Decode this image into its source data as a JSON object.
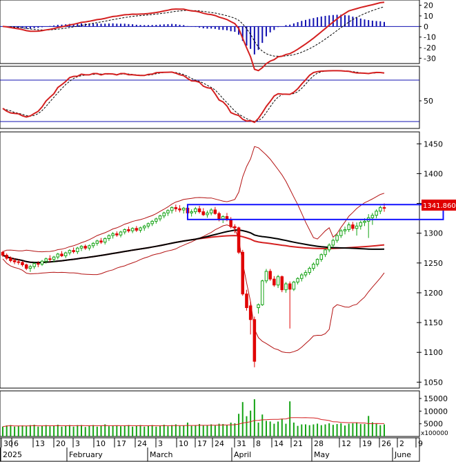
{
  "chart_data": {
    "type": "candlestick",
    "price_label": "1341.860",
    "colors": {
      "background": "#ffffff",
      "up": "#13a313",
      "down": "#e00000",
      "ma_short": "#000000",
      "ma_long": "#d42020",
      "bands": "#b31010",
      "highlight_box": "#1010ff",
      "macd_hist": "#1010b0",
      "price_tag": "#e00000"
    },
    "x_axis": {
      "day_ticks": [
        "30",
        "6",
        "13",
        "20",
        "3",
        "10",
        "17",
        "24",
        "3",
        "10",
        "17",
        "24",
        "31",
        "8",
        "14",
        "21",
        "28",
        "12",
        "19",
        "26",
        "2",
        "9"
      ],
      "month_labels": [
        "2025",
        "February",
        "March",
        "April",
        "May",
        "June"
      ]
    },
    "macd_panel": {
      "ticks": [
        "20",
        "10",
        "0",
        "-10",
        "-20",
        "-30"
      ],
      "ylim": [
        -35,
        25
      ]
    },
    "stoch_panel": {
      "ticks": [
        "50"
      ],
      "lines": [
        80,
        20
      ],
      "ylim": [
        10,
        100
      ]
    },
    "price_panel": {
      "ticks": [
        "1450",
        "1400",
        "1350",
        "1300",
        "1250",
        "1200",
        "1150",
        "1100",
        "1050"
      ],
      "ylim": [
        1040,
        1470
      ]
    },
    "volume_panel": {
      "ticks": [
        "15000",
        "10000",
        "5000"
      ],
      "unit": "x100000",
      "ylim": [
        0,
        18000
      ]
    },
    "resistance_zone": {
      "low": 1323,
      "high": 1348,
      "start_index": 47,
      "end_index": 112
    },
    "candles": [
      [
        1268,
        1270,
        1260,
        1263
      ],
      [
        1263,
        1266,
        1255,
        1258
      ],
      [
        1258,
        1261,
        1251,
        1254
      ],
      [
        1254,
        1258,
        1248,
        1252
      ],
      [
        1252,
        1256,
        1247,
        1251
      ],
      [
        1251,
        1253,
        1244,
        1247
      ],
      [
        1247,
        1249,
        1238,
        1241
      ],
      [
        1241,
        1247,
        1235,
        1244
      ],
      [
        1244,
        1251,
        1240,
        1249
      ],
      [
        1249,
        1253,
        1243,
        1248
      ],
      [
        1248,
        1255,
        1245,
        1253
      ],
      [
        1253,
        1259,
        1249,
        1257
      ],
      [
        1257,
        1263,
        1252,
        1256
      ],
      [
        1256,
        1262,
        1251,
        1260
      ],
      [
        1260,
        1267,
        1256,
        1265
      ],
      [
        1265,
        1270,
        1260,
        1262
      ],
      [
        1262,
        1269,
        1258,
        1267
      ],
      [
        1267,
        1273,
        1263,
        1271
      ],
      [
        1271,
        1276,
        1266,
        1269
      ],
      [
        1269,
        1277,
        1265,
        1275
      ],
      [
        1275,
        1280,
        1270,
        1278
      ],
      [
        1278,
        1281,
        1272,
        1275
      ],
      [
        1275,
        1281,
        1271,
        1279
      ],
      [
        1279,
        1285,
        1275,
        1283
      ],
      [
        1283,
        1289,
        1279,
        1287
      ],
      [
        1287,
        1292,
        1282,
        1285
      ],
      [
        1285,
        1293,
        1281,
        1291
      ],
      [
        1291,
        1298,
        1287,
        1296
      ],
      [
        1296,
        1302,
        1291,
        1299
      ],
      [
        1299,
        1303,
        1294,
        1297
      ],
      [
        1297,
        1304,
        1293,
        1302
      ],
      [
        1302,
        1308,
        1298,
        1306
      ],
      [
        1306,
        1311,
        1301,
        1304
      ],
      [
        1304,
        1310,
        1300,
        1308
      ],
      [
        1308,
        1312,
        1302,
        1305
      ],
      [
        1305,
        1311,
        1301,
        1309
      ],
      [
        1309,
        1314,
        1304,
        1312
      ],
      [
        1312,
        1318,
        1308,
        1316
      ],
      [
        1316,
        1322,
        1312,
        1320
      ],
      [
        1320,
        1326,
        1316,
        1324
      ],
      [
        1324,
        1331,
        1320,
        1329
      ],
      [
        1329,
        1336,
        1325,
        1334
      ],
      [
        1334,
        1340,
        1329,
        1338
      ],
      [
        1338,
        1345,
        1333,
        1343
      ],
      [
        1343,
        1348,
        1336,
        1341
      ],
      [
        1341,
        1347,
        1335,
        1339
      ],
      [
        1339,
        1344,
        1333,
        1342
      ],
      [
        1342,
        1347,
        1330,
        1334
      ],
      [
        1334,
        1340,
        1328,
        1336
      ],
      [
        1336,
        1344,
        1332,
        1341
      ],
      [
        1341,
        1346,
        1333,
        1336
      ],
      [
        1336,
        1342,
        1329,
        1331
      ],
      [
        1331,
        1338,
        1326,
        1334
      ],
      [
        1334,
        1342,
        1330,
        1339
      ],
      [
        1339,
        1344,
        1331,
        1333
      ],
      [
        1333,
        1336,
        1320,
        1324
      ],
      [
        1324,
        1330,
        1317,
        1328
      ],
      [
        1328,
        1334,
        1320,
        1323
      ],
      [
        1323,
        1327,
        1308,
        1311
      ],
      [
        1311,
        1315,
        1300,
        1309
      ],
      [
        1309,
        1311,
        1265,
        1268
      ],
      [
        1268,
        1272,
        1195,
        1198
      ],
      [
        1198,
        1205,
        1170,
        1175
      ],
      [
        1178,
        1185,
        1130,
        1155
      ],
      [
        1155,
        1160,
        1075,
        1085
      ],
      [
        1175,
        1182,
        1165,
        1180
      ],
      [
        1180,
        1222,
        1178,
        1220
      ],
      [
        1220,
        1240,
        1216,
        1236
      ],
      [
        1236,
        1240,
        1220,
        1223
      ],
      [
        1223,
        1228,
        1210,
        1213
      ],
      [
        1213,
        1230,
        1208,
        1227
      ],
      [
        1227,
        1229,
        1201,
        1205
      ],
      [
        1205,
        1218,
        1200,
        1215
      ],
      [
        1215,
        1219,
        1140,
        1206
      ],
      [
        1206,
        1220,
        1203,
        1218
      ],
      [
        1218,
        1226,
        1214,
        1224
      ],
      [
        1224,
        1233,
        1219,
        1230
      ],
      [
        1230,
        1238,
        1226,
        1234
      ],
      [
        1234,
        1244,
        1230,
        1241
      ],
      [
        1241,
        1251,
        1237,
        1248
      ],
      [
        1248,
        1258,
        1244,
        1256
      ],
      [
        1256,
        1266,
        1252,
        1264
      ],
      [
        1264,
        1274,
        1260,
        1272
      ],
      [
        1272,
        1283,
        1268,
        1280
      ],
      [
        1280,
        1291,
        1276,
        1288
      ],
      [
        1288,
        1299,
        1284,
        1296
      ],
      [
        1296,
        1307,
        1292,
        1304
      ],
      [
        1304,
        1311,
        1298,
        1306
      ],
      [
        1306,
        1318,
        1302,
        1314
      ],
      [
        1314,
        1319,
        1304,
        1308
      ],
      [
        1308,
        1318,
        1296,
        1312
      ],
      [
        1312,
        1321,
        1306,
        1318
      ],
      [
        1318,
        1325,
        1312,
        1320
      ],
      [
        1320,
        1332,
        1292,
        1326
      ],
      [
        1326,
        1334,
        1314,
        1330
      ],
      [
        1330,
        1340,
        1325,
        1337
      ],
      [
        1337,
        1346,
        1332,
        1343
      ],
      [
        1343,
        1350,
        1336,
        1342
      ]
    ]
  }
}
